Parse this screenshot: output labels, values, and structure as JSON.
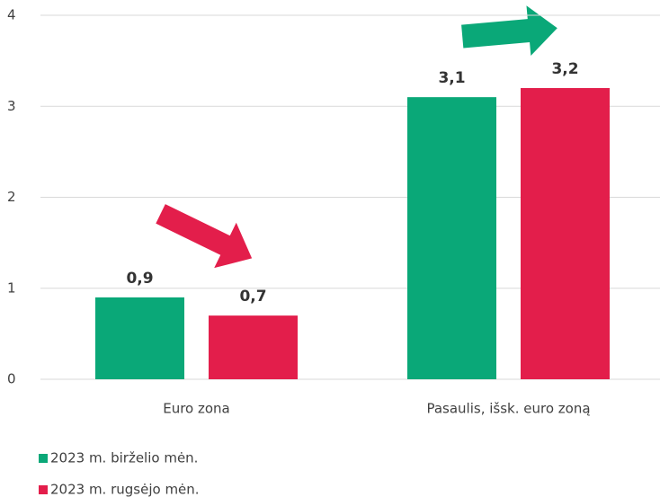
{
  "chart_data": {
    "type": "bar",
    "categories": [
      "Euro zona",
      "Pasaulis, išsk. euro zoną"
    ],
    "series": [
      {
        "name": "2023 m. birželio mėn.",
        "color": "#0aa878",
        "values": [
          0.9,
          3.1
        ],
        "value_labels": [
          "0,9",
          "3,1"
        ]
      },
      {
        "name": "2023 m. rugsėjo mėn.",
        "color": "#e31e4b",
        "values": [
          0.7,
          3.2
        ],
        "value_labels": [
          "0,7",
          "3,2"
        ]
      }
    ],
    "ylim": [
      0,
      4
    ],
    "yticks": [
      0,
      1,
      2,
      3,
      4
    ],
    "grid": true,
    "legend": "bottom-left"
  }
}
